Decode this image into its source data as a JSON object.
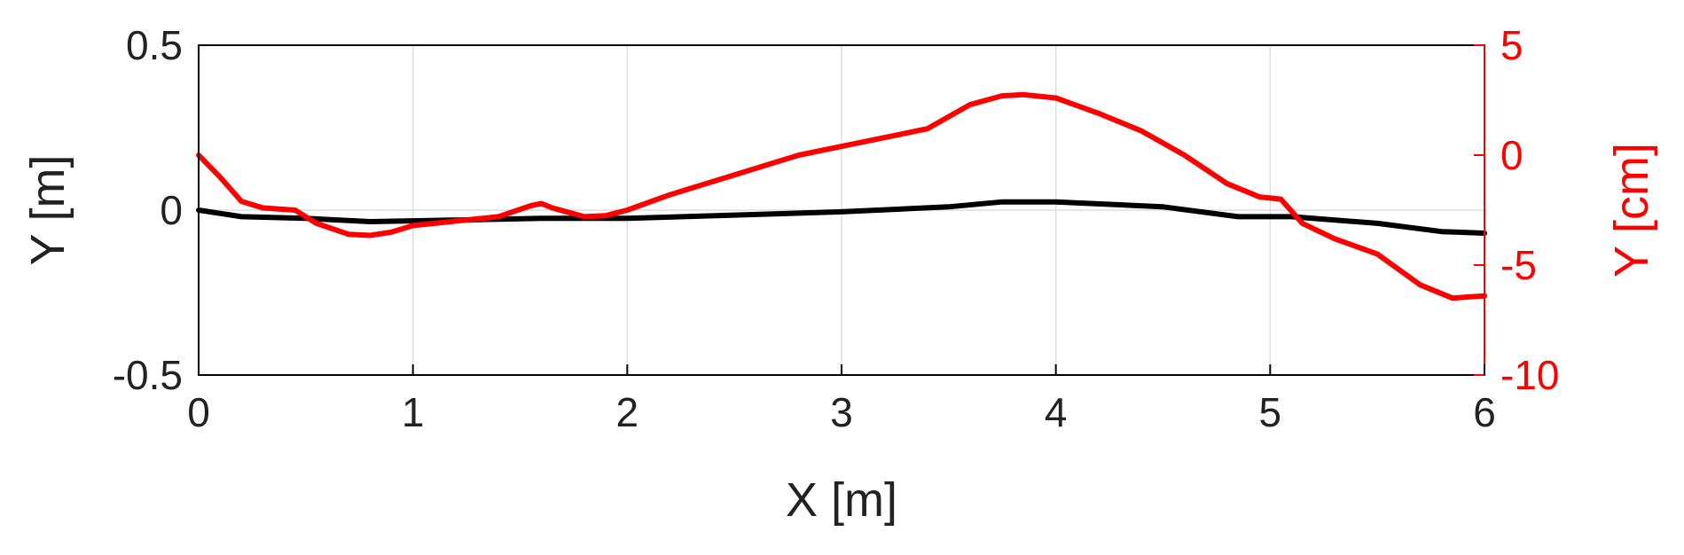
{
  "chart_data": {
    "type": "line",
    "xlabel": "X [m]",
    "ylabel_left": "Y [m]",
    "ylabel_right": "Y [cm]",
    "xlim": [
      0,
      6
    ],
    "ylim_left": [
      -0.5,
      0.5
    ],
    "ylim_right": [
      -10,
      5
    ],
    "x_ticks": [
      "0",
      "1",
      "2",
      "3",
      "4",
      "5",
      "6"
    ],
    "y_ticks_left": [
      "-0.5",
      "0",
      "0.5"
    ],
    "y_ticks_right": [
      "-10",
      "-5",
      "0",
      "5"
    ],
    "grid": true,
    "colors": {
      "left_series": "#000000",
      "right_series": "#ff0000",
      "right_axis": "#ff0000"
    },
    "series": [
      {
        "axis": "left",
        "x": [
          0,
          0.2,
          0.5,
          0.8,
          1.2,
          1.6,
          2.0,
          2.5,
          3.0,
          3.5,
          3.75,
          4.0,
          4.5,
          4.85,
          5.1,
          5.5,
          5.8,
          6.0
        ],
        "y": [
          0.0,
          -0.02,
          -0.025,
          -0.035,
          -0.03,
          -0.025,
          -0.025,
          -0.015,
          -0.005,
          0.01,
          0.025,
          0.025,
          0.01,
          -0.02,
          -0.02,
          -0.04,
          -0.065,
          -0.07
        ]
      },
      {
        "axis": "right",
        "x": [
          0,
          0.1,
          0.2,
          0.3,
          0.45,
          0.55,
          0.7,
          0.8,
          0.9,
          1.0,
          1.2,
          1.4,
          1.55,
          1.6,
          1.65,
          1.8,
          1.9,
          2.0,
          2.2,
          2.4,
          2.6,
          2.8,
          3.0,
          3.2,
          3.4,
          3.6,
          3.75,
          3.85,
          4.0,
          4.2,
          4.4,
          4.6,
          4.8,
          4.95,
          5.05,
          5.15,
          5.3,
          5.5,
          5.7,
          5.85,
          6.0
        ],
        "y": [
          0.0,
          -1.0,
          -2.1,
          -2.4,
          -2.5,
          -3.1,
          -3.6,
          -3.65,
          -3.5,
          -3.2,
          -3.0,
          -2.8,
          -2.3,
          -2.2,
          -2.4,
          -2.8,
          -2.75,
          -2.5,
          -1.8,
          -1.2,
          -0.6,
          0.0,
          0.4,
          0.8,
          1.2,
          2.3,
          2.7,
          2.75,
          2.6,
          1.9,
          1.1,
          0.0,
          -1.3,
          -1.9,
          -2.0,
          -3.1,
          -3.8,
          -4.5,
          -5.9,
          -6.5,
          -6.4
        ]
      }
    ]
  }
}
